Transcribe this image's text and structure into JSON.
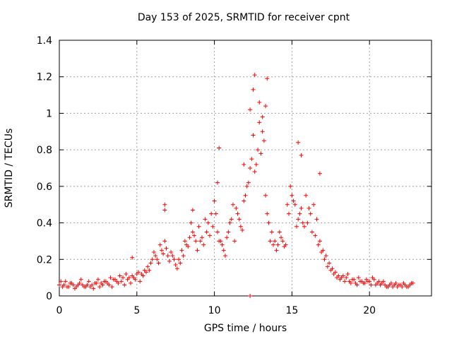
{
  "chart_data": {
    "type": "scatter",
    "title": "Day 153 of 2025, SRMTID for receiver cpnt",
    "xlabel": "GPS time / hours",
    "ylabel": "SRMTID / TECUs",
    "xlim": [
      0,
      24
    ],
    "ylim": [
      0,
      1.4
    ],
    "xticks": [
      0,
      5,
      10,
      15,
      20
    ],
    "yticks": [
      0,
      0.2,
      0.4,
      0.6,
      0.8,
      1,
      1.2,
      1.4
    ],
    "xtick_labels": [
      "0",
      "5",
      "10",
      "15",
      "20"
    ],
    "ytick_labels": [
      "0",
      "0.2",
      "0.4",
      "0.6",
      "0.8",
      "1",
      "1.2",
      "1.4"
    ],
    "grid": true,
    "marker": "+",
    "color": "#ff0000",
    "series": [
      {
        "name": "SRMTID",
        "x": [
          0.0,
          0.2,
          0.4,
          0.6,
          0.8,
          1.0,
          1.2,
          1.4,
          1.6,
          1.8,
          2.0,
          2.2,
          2.4,
          2.6,
          2.8,
          3.0,
          3.2,
          3.4,
          3.6,
          3.8,
          4.0,
          4.2,
          4.4,
          4.6,
          4.8,
          5.0,
          5.2,
          5.4,
          5.6,
          5.8,
          6.0,
          6.2,
          6.4,
          6.6,
          6.8,
          7.0,
          7.2,
          7.4,
          7.6,
          7.8,
          8.0,
          8.2,
          8.4,
          8.6,
          8.8,
          9.0,
          9.2,
          9.4,
          9.6,
          9.8,
          10.0,
          10.2,
          10.4,
          10.6,
          10.8,
          11.0,
          11.2,
          11.4,
          11.6,
          11.8,
          12.0,
          12.2,
          12.4,
          12.6,
          12.8,
          13.0,
          13.2,
          13.4,
          13.6,
          13.8,
          14.0,
          14.2,
          14.4,
          14.6,
          14.8,
          15.0,
          15.2,
          15.4,
          15.6,
          15.8,
          16.0,
          16.2,
          16.4,
          16.6,
          16.8,
          17.0,
          17.2,
          17.4,
          17.6,
          17.8,
          18.0,
          18.2,
          18.4,
          18.6,
          18.8,
          19.0,
          19.2,
          19.4,
          19.6,
          19.8,
          20.0,
          20.2,
          20.4,
          20.6,
          20.8,
          21.0,
          21.2,
          21.4,
          21.6,
          21.8,
          22.0,
          22.2,
          22.4,
          22.6,
          22.8,
          0.1,
          0.3,
          0.5,
          0.7,
          0.9,
          1.1,
          1.3,
          1.5,
          1.7,
          1.9,
          2.1,
          2.3,
          2.5,
          2.7,
          2.9,
          3.1,
          3.3,
          3.5,
          3.7,
          3.9,
          4.1,
          4.3,
          4.5,
          4.7,
          4.9,
          5.1,
          5.3,
          5.5,
          5.7,
          5.9,
          6.1,
          6.3,
          6.5,
          6.7,
          6.9,
          7.1,
          7.3,
          7.5,
          7.7,
          7.9,
          8.1,
          8.3,
          8.5,
          8.7,
          8.9,
          9.1,
          9.3,
          9.5,
          9.7,
          9.9,
          10.1,
          10.3,
          10.5,
          10.7,
          10.9,
          11.1,
          11.3,
          11.5,
          11.7,
          11.9,
          12.1,
          12.3,
          12.5,
          12.7,
          12.9,
          13.1,
          13.3,
          13.5,
          13.7,
          13.9,
          14.1,
          14.3,
          14.5,
          14.7,
          14.9,
          15.1,
          15.3,
          15.5,
          15.7,
          15.9,
          16.1,
          16.3,
          16.5,
          16.7,
          16.9,
          17.1,
          17.3,
          17.5,
          17.7,
          17.9,
          18.1,
          18.3,
          18.5,
          18.7,
          18.9,
          19.1,
          19.3,
          19.5,
          19.7,
          19.9,
          20.1,
          20.3,
          20.5,
          20.7,
          20.9,
          21.1,
          21.3,
          21.5,
          21.7,
          21.9,
          22.1,
          22.3,
          22.5,
          22.7,
          4.7,
          6.8,
          6.8,
          8.6,
          10.2,
          10.3,
          11.9,
          12.3,
          12.5,
          12.6,
          12.9,
          13.1,
          13.3,
          13.4,
          15.4,
          15.6,
          16.8,
          12.3
        ],
        "y": [
          0.06,
          0.05,
          0.08,
          0.05,
          0.07,
          0.04,
          0.06,
          0.09,
          0.05,
          0.06,
          0.05,
          0.04,
          0.07,
          0.05,
          0.06,
          0.08,
          0.06,
          0.05,
          0.09,
          0.07,
          0.08,
          0.06,
          0.09,
          0.07,
          0.1,
          0.12,
          0.08,
          0.11,
          0.13,
          0.14,
          0.2,
          0.22,
          0.18,
          0.25,
          0.3,
          0.22,
          0.24,
          0.2,
          0.15,
          0.18,
          0.22,
          0.28,
          0.32,
          0.35,
          0.3,
          0.38,
          0.32,
          0.42,
          0.4,
          0.45,
          0.52,
          0.35,
          0.3,
          0.25,
          0.32,
          0.4,
          0.5,
          0.48,
          0.42,
          0.36,
          0.55,
          0.62,
          0.75,
          0.68,
          0.8,
          0.78,
          0.85,
          0.45,
          0.3,
          0.28,
          0.25,
          0.35,
          0.3,
          0.28,
          0.45,
          0.55,
          0.5,
          0.42,
          0.48,
          0.38,
          0.4,
          0.45,
          0.5,
          0.42,
          0.3,
          0.25,
          0.22,
          0.18,
          0.15,
          0.13,
          0.11,
          0.1,
          0.08,
          0.12,
          0.07,
          0.09,
          0.06,
          0.08,
          0.07,
          0.09,
          0.08,
          0.1,
          0.06,
          0.08,
          0.07,
          0.06,
          0.05,
          0.07,
          0.06,
          0.05,
          0.06,
          0.07,
          0.05,
          0.06,
          0.07,
          0.08,
          0.06,
          0.05,
          0.07,
          0.06,
          0.05,
          0.07,
          0.06,
          0.05,
          0.08,
          0.06,
          0.07,
          0.09,
          0.07,
          0.08,
          0.07,
          0.1,
          0.09,
          0.08,
          0.11,
          0.1,
          0.12,
          0.1,
          0.11,
          0.09,
          0.13,
          0.12,
          0.14,
          0.16,
          0.18,
          0.24,
          0.2,
          0.28,
          0.23,
          0.26,
          0.19,
          0.22,
          0.17,
          0.2,
          0.25,
          0.3,
          0.27,
          0.4,
          0.33,
          0.25,
          0.3,
          0.28,
          0.35,
          0.33,
          0.38,
          0.45,
          0.3,
          0.28,
          0.22,
          0.35,
          0.42,
          0.3,
          0.45,
          0.38,
          0.52,
          0.6,
          0.7,
          0.88,
          0.72,
          0.95,
          0.9,
          0.55,
          0.4,
          0.35,
          0.3,
          0.28,
          0.32,
          0.27,
          0.5,
          0.6,
          0.52,
          0.38,
          0.45,
          0.4,
          0.55,
          0.48,
          0.35,
          0.33,
          0.28,
          0.24,
          0.2,
          0.16,
          0.14,
          0.12,
          0.1,
          0.09,
          0.11,
          0.1,
          0.08,
          0.09,
          0.07,
          0.1,
          0.08,
          0.07,
          0.08,
          0.06,
          0.09,
          0.07,
          0.06,
          0.08,
          0.05,
          0.06,
          0.05,
          0.07,
          0.06,
          0.05,
          0.06,
          0.05,
          0.07,
          0.21,
          0.5,
          0.47,
          0.47,
          0.62,
          0.81,
          0.72,
          1.02,
          1.13,
          1.21,
          1.06,
          0.98,
          1.04,
          1.19,
          0.84,
          0.77,
          0.67,
          0.0
        ]
      }
    ]
  }
}
